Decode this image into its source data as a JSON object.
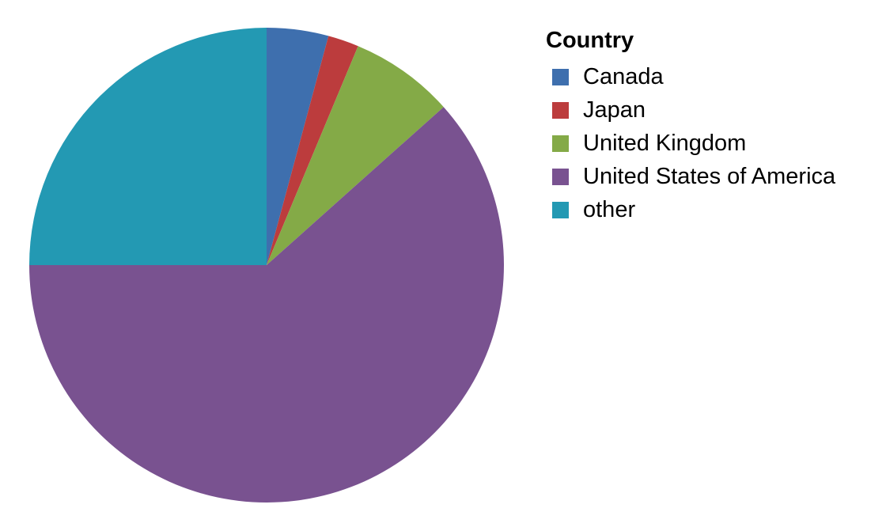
{
  "chart_data": {
    "type": "pie",
    "legend_title": "Country",
    "legend_position": "right",
    "start_angle_deg": 0,
    "direction": "clockwise",
    "categories": [
      "Canada",
      "Japan",
      "United Kingdom",
      "United States of America",
      "other"
    ],
    "values": [
      4.2,
      2.1,
      7.1,
      61.6,
      25.0
    ],
    "colors": [
      "#3e6fae",
      "#bc3c3d",
      "#84aa47",
      "#795290",
      "#2399b3"
    ]
  }
}
